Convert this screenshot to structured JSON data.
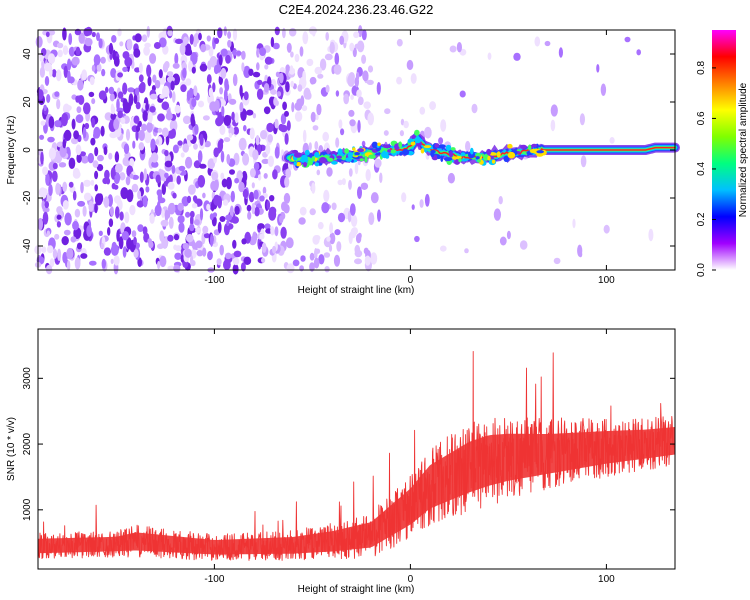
{
  "title": "C2E4.2024.236.23.46.G22",
  "chart_data": [
    {
      "type": "heatmap",
      "title": "C2E4.2024.236.23.46.G22",
      "xlabel": "Height of straight line (km)",
      "ylabel": "Frequency (Hz)",
      "xlim": [
        -190,
        135
      ],
      "ylim": [
        -50,
        50
      ],
      "x_ticks": [
        -100,
        0,
        100
      ],
      "y_ticks": [
        -40,
        -20,
        0,
        20,
        40
      ],
      "x_tick_labels": [
        "-100",
        "0",
        "100"
      ],
      "y_tick_labels": [
        "-40",
        "-20",
        "0",
        "20",
        "40"
      ],
      "ridge": {
        "description_points_x": [
          -62,
          -55,
          -45,
          -35,
          -25,
          -15,
          -5,
          0,
          3,
          8,
          15,
          25,
          35,
          45,
          55,
          67,
          80,
          100,
          120,
          125,
          135
        ],
        "description_points_y": [
          -3,
          -4,
          -3,
          -3,
          -2,
          0,
          0,
          1,
          5,
          1,
          -1,
          -3,
          -3,
          -2,
          -1,
          0,
          0,
          0,
          0,
          1,
          1
        ]
      },
      "colorbar": {
        "label": "Normalized spectral amplitude",
        "range": [
          0,
          0.95
        ],
        "ticks": [
          0.0,
          0.2,
          0.4,
          0.6,
          0.8
        ],
        "tick_labels": [
          "0.0",
          "0.2",
          "0.4",
          "0.6",
          "0.8"
        ],
        "colors": [
          "#ffffff",
          "#a000ff",
          "#0000ff",
          "#00c0ff",
          "#00ff80",
          "#80ff00",
          "#ffff00",
          "#ff8000",
          "#ff0000",
          "#ff00ff"
        ]
      }
    },
    {
      "type": "line",
      "xlabel": "Height of straight line (km)",
      "ylabel": "SNR (10 * v/v)",
      "xlim": [
        -190,
        135
      ],
      "ylim": [
        100,
        3750
      ],
      "x_ticks": [
        -100,
        0,
        100
      ],
      "y_ticks": [
        1000,
        2000,
        3000
      ],
      "x_tick_labels": [
        "-100",
        "0",
        "100"
      ],
      "y_tick_labels": [
        "1000",
        "2000",
        "3000"
      ],
      "color": "#ee3333",
      "envelope": {
        "x": [
          -190,
          -150,
          -140,
          -100,
          -60,
          -40,
          -20,
          0,
          10,
          20,
          30,
          40,
          50,
          70,
          100,
          120,
          135
        ],
        "mean": [
          450,
          480,
          520,
          430,
          460,
          520,
          620,
          1050,
          1350,
          1500,
          1650,
          1750,
          1800,
          1850,
          1950,
          2000,
          2050
        ],
        "spread": [
          200,
          200,
          250,
          200,
          230,
          280,
          350,
          500,
          600,
          650,
          700,
          700,
          650,
          550,
          450,
          400,
          380
        ]
      }
    }
  ]
}
